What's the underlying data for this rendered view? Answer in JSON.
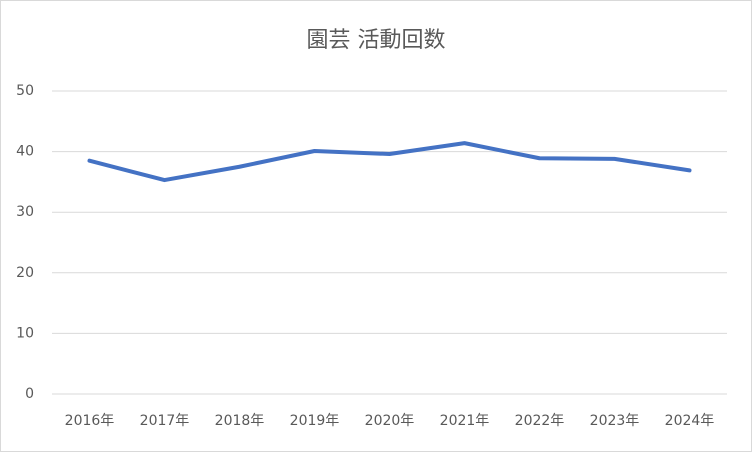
{
  "chart_data": {
    "type": "line",
    "title": "園芸 活動回数",
    "categories": [
      "2016年",
      "2017年",
      "2018年",
      "2019年",
      "2020年",
      "2021年",
      "2022年",
      "2023年",
      "2024年"
    ],
    "values": [
      38.5,
      35.3,
      37.5,
      40.1,
      39.6,
      41.4,
      38.9,
      38.8,
      36.9
    ],
    "color": "#4472c4",
    "ylim": [
      0,
      50
    ],
    "yticks": [
      0,
      10,
      20,
      30,
      40,
      50
    ],
    "grid": true
  }
}
